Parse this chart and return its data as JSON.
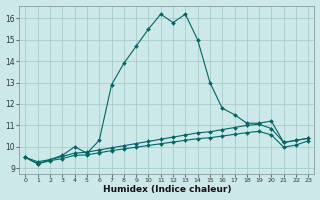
{
  "xlabel": "Humidex (Indice chaleur)",
  "ylabel": "",
  "bg_color": "#cce8e8",
  "grid_color": "#aacccc",
  "line_color": "#006666",
  "xlim": [
    -0.5,
    23.5
  ],
  "ylim": [
    8.75,
    16.6
  ],
  "xticks": [
    0,
    1,
    2,
    3,
    4,
    5,
    6,
    7,
    8,
    9,
    10,
    11,
    12,
    13,
    14,
    15,
    16,
    17,
    18,
    19,
    20,
    21,
    22,
    23
  ],
  "yticks": [
    9,
    10,
    11,
    12,
    13,
    14,
    15,
    16
  ],
  "curve1_x": [
    0,
    1,
    2,
    3,
    4,
    5,
    6,
    7,
    8,
    9,
    10,
    11,
    12,
    13,
    14,
    15,
    16,
    17,
    18,
    19,
    20,
    21,
    22,
    23
  ],
  "curve1_y": [
    9.5,
    9.2,
    9.4,
    9.6,
    10.0,
    9.7,
    10.3,
    12.9,
    13.9,
    14.7,
    15.5,
    16.2,
    15.8,
    16.2,
    15.0,
    13.0,
    11.8,
    11.5,
    11.1,
    11.1,
    11.2,
    10.2,
    10.3,
    10.4
  ],
  "curve2_x": [
    0,
    1,
    2,
    3,
    4,
    5,
    6,
    7,
    8,
    9,
    10,
    11,
    12,
    13,
    14,
    15,
    16,
    17,
    18,
    19,
    20,
    21,
    22,
    23
  ],
  "curve2_y": [
    9.5,
    9.3,
    9.4,
    9.55,
    9.7,
    9.75,
    9.85,
    9.95,
    10.05,
    10.15,
    10.25,
    10.35,
    10.45,
    10.55,
    10.65,
    10.7,
    10.8,
    10.9,
    11.0,
    11.05,
    10.85,
    10.2,
    10.3,
    10.4
  ],
  "curve3_x": [
    0,
    1,
    2,
    3,
    4,
    5,
    6,
    7,
    8,
    9,
    10,
    11,
    12,
    13,
    14,
    15,
    16,
    17,
    18,
    19,
    20,
    21,
    22,
    23
  ],
  "curve3_y": [
    9.5,
    9.2,
    9.35,
    9.45,
    9.6,
    9.62,
    9.72,
    9.82,
    9.9,
    9.98,
    10.06,
    10.14,
    10.22,
    10.3,
    10.38,
    10.42,
    10.5,
    10.58,
    10.66,
    10.72,
    10.55,
    9.98,
    10.08,
    10.28
  ]
}
